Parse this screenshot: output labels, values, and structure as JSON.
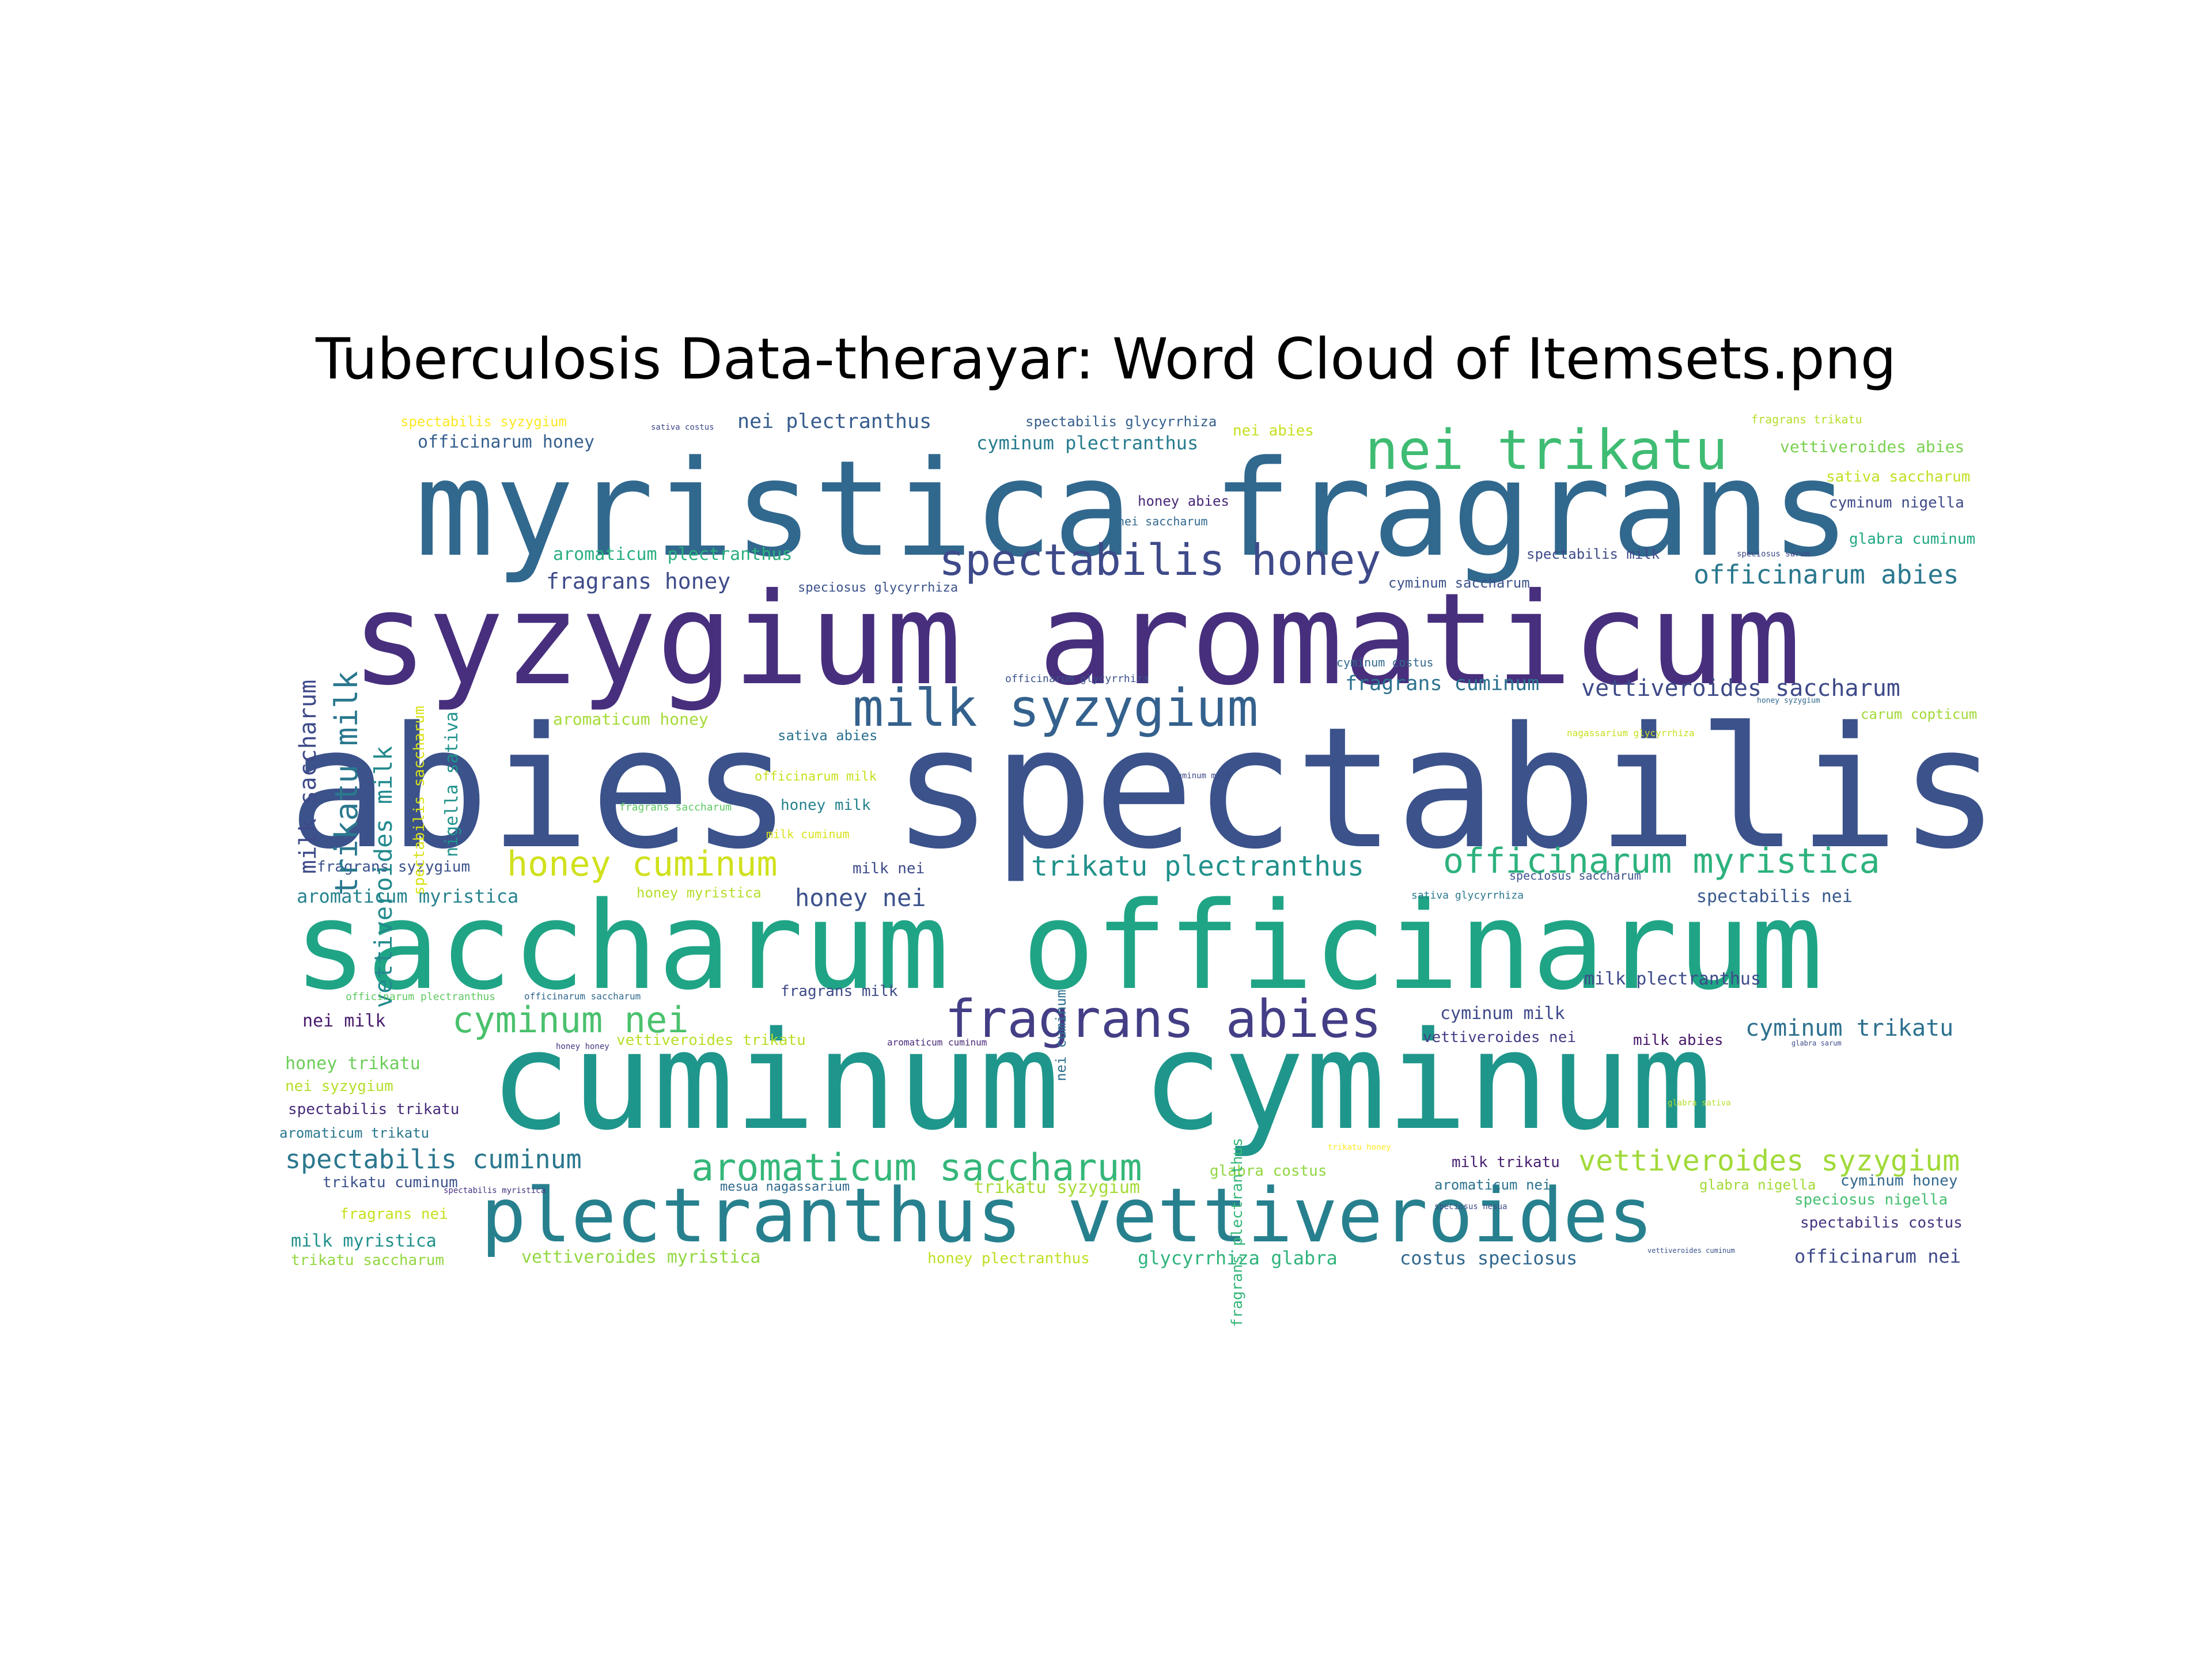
{
  "title": "Tuberculosis Data-therayar: Word Cloud of Itemsets.png",
  "palette": {
    "dark_purple": "#482878",
    "indigo": "#3e4a89",
    "blue": "#31688e",
    "teal": "#26828e",
    "green_teal": "#1f9e89",
    "green": "#35b779",
    "lime": "#6ece58",
    "yellow": "#b5de2b"
  },
  "words": [
    {
      "text": "abies spectabilis",
      "color": "#3b528b"
    },
    {
      "text": "syzygium aromaticum",
      "color": "#472f7d"
    },
    {
      "text": "myristica fragrans",
      "color": "#31688e"
    },
    {
      "text": "saccharum officinarum",
      "color": "#20a486"
    },
    {
      "text": "cuminum cyminum",
      "color": "#1f968b"
    },
    {
      "text": "plectranthus vettiveroides",
      "color": "#27808e"
    },
    {
      "text": "nei trikatu",
      "color": "#3fbc73"
    },
    {
      "text": "spectabilis honey",
      "color": "#3e4a89"
    },
    {
      "text": "milk syzygium",
      "color": "#34618d"
    },
    {
      "text": "fragrans abies",
      "color": "#433e85"
    },
    {
      "text": "honey cuminum",
      "color": "#d0e11c"
    },
    {
      "text": "officinarum myristica",
      "color": "#2db27d"
    },
    {
      "text": "trikatu plectranthus",
      "color": "#21918c"
    },
    {
      "text": "cyminum nei",
      "color": "#4ac16d"
    },
    {
      "text": "aromaticum saccharum",
      "color": "#35b779"
    },
    {
      "text": "vettiveroides syzygium",
      "color": "#a0da39"
    },
    {
      "text": "officinarum abies",
      "color": "#2a788e"
    },
    {
      "text": "fragrans honey",
      "color": "#3e4c8a"
    },
    {
      "text": "vettiveroides saccharum",
      "color": "#3e4a89"
    },
    {
      "text": "fragrans cuminum",
      "color": "#2c728e"
    },
    {
      "text": "spectabilis cuminum",
      "color": "#2a778e"
    },
    {
      "text": "cyminum trikatu",
      "color": "#2d708e"
    },
    {
      "text": "honey nei",
      "color": "#3b528b"
    },
    {
      "text": "nei plectranthus",
      "color": "#365c8d"
    },
    {
      "text": "officinarum honey",
      "color": "#355f8d"
    },
    {
      "text": "cyminum plectranthus",
      "color": "#287c8e"
    },
    {
      "text": "aromaticum plectranthus",
      "color": "#29af7f"
    },
    {
      "text": "aromaticum myristica",
      "color": "#25838e"
    },
    {
      "text": "fragrans syzygium",
      "color": "#3b528b"
    },
    {
      "text": "aromaticum honey",
      "color": "#a5db36"
    },
    {
      "text": "honey trikatu",
      "color": "#6ccd5a"
    },
    {
      "text": "nei milk",
      "color": "#481a6c"
    },
    {
      "text": "nei syzygium",
      "color": "#b5de2b"
    },
    {
      "text": "spectabilis trikatu",
      "color": "#472c7a"
    },
    {
      "text": "aromaticum trikatu",
      "color": "#2a788e"
    },
    {
      "text": "trikatu cuminum",
      "color": "#3b528b"
    },
    {
      "text": "fragrans nei",
      "color": "#c8e020"
    },
    {
      "text": "milk myristica",
      "color": "#21918c"
    },
    {
      "text": "trikatu saccharum",
      "color": "#93d741"
    },
    {
      "text": "vettiveroides myristica",
      "color": "#93d741"
    },
    {
      "text": "honey plectranthus",
      "color": "#bddf26"
    },
    {
      "text": "glycyrrhiza glabra",
      "color": "#2fb47c"
    },
    {
      "text": "costus speciosus",
      "color": "#31688e"
    },
    {
      "text": "officinarum nei",
      "color": "#3e4a89"
    },
    {
      "text": "spectabilis costus",
      "color": "#46337f"
    },
    {
      "text": "speciosus nigella",
      "color": "#44bf70"
    },
    {
      "text": "cyminum honey",
      "color": "#31688e"
    },
    {
      "text": "glabra nigella",
      "color": "#a2da37"
    },
    {
      "text": "aromaticum nei",
      "color": "#2c728e"
    },
    {
      "text": "milk trikatu",
      "color": "#481f70"
    },
    {
      "text": "glabra costus",
      "color": "#90d743"
    },
    {
      "text": "trikatu syzygium",
      "color": "#a5db36"
    },
    {
      "text": "mesua nagassarium",
      "color": "#31688e"
    },
    {
      "text": "spectabilis nei",
      "color": "#38598c"
    },
    {
      "text": "milk plectranthus",
      "color": "#3e4a89"
    },
    {
      "text": "cyminum milk",
      "color": "#3e4a89"
    },
    {
      "text": "vettiveroides nei",
      "color": "#433e85"
    },
    {
      "text": "milk abies",
      "color": "#48186a"
    },
    {
      "text": "vettiveroides trikatu",
      "color": "#b8de29"
    },
    {
      "text": "fragrans milk",
      "color": "#3e4a89"
    },
    {
      "text": "honey myristica",
      "color": "#b5de2b"
    },
    {
      "text": "milk nei",
      "color": "#3e4a89"
    },
    {
      "text": "honey milk",
      "color": "#26828e"
    },
    {
      "text": "sativa abies",
      "color": "#2c728e"
    },
    {
      "text": "carum copticum",
      "color": "#a2da37"
    },
    {
      "text": "spectabilis milk",
      "color": "#3e4a89"
    },
    {
      "text": "cyminum saccharum",
      "color": "#3b528b"
    },
    {
      "text": "glabra cuminum",
      "color": "#22a884"
    },
    {
      "text": "cyminum nigella",
      "color": "#3e4a89"
    },
    {
      "text": "sativa saccharum",
      "color": "#c2df23"
    },
    {
      "text": "vettiveroides abies",
      "color": "#7ad151"
    },
    {
      "text": "spectabilis syzygium",
      "color": "#fde725"
    },
    {
      "text": "spectabilis glycyrrhiza",
      "color": "#355f8d"
    },
    {
      "text": "nei abies",
      "color": "#c8e020"
    },
    {
      "text": "fragrans trikatu",
      "color": "#b5de2b"
    },
    {
      "text": "honey abies",
      "color": "#482878"
    },
    {
      "text": "nei saccharum",
      "color": "#31688e"
    },
    {
      "text": "speciosus glycyrrhiza",
      "color": "#3b528b"
    },
    {
      "text": "cyminum costus",
      "color": "#31688e"
    },
    {
      "text": "speciosus saccharum",
      "color": "#3b528b"
    },
    {
      "text": "sativa glycyrrhiza",
      "color": "#2a788e"
    },
    {
      "text": "officinarum glycyrrhiza",
      "color": "#3b528b"
    },
    {
      "text": "nagassarium glycyrrhiza",
      "color": "#c8e020"
    },
    {
      "text": "milk saccharum",
      "color": "#3e4a89"
    },
    {
      "text": "trikatu milk",
      "color": "#2a788e"
    },
    {
      "text": "vettiveroides milk",
      "color": "#238a8d"
    },
    {
      "text": "spectabilis saccharum",
      "color": "#d8e219"
    },
    {
      "text": "nigella sativa",
      "color": "#20928c"
    },
    {
      "text": "nei cuminum",
      "color": "#2e6f8e"
    },
    {
      "text": "fragrans plectranthus",
      "color": "#35b779"
    },
    {
      "text": "officinarum milk",
      "color": "#c8e020"
    },
    {
      "text": "milk cuminum",
      "color": "#d8e219"
    },
    {
      "text": "fragrans saccharum",
      "color": "#5ec962"
    },
    {
      "text": "officinarum plectranthus",
      "color": "#5ec962"
    },
    {
      "text": "officinarum saccharum",
      "color": "#31688e"
    },
    {
      "text": "honey honey",
      "color": "#46337f"
    },
    {
      "text": "aromaticum cuminum",
      "color": "#482878"
    },
    {
      "text": "spectabilis myristica",
      "color": "#46337f"
    },
    {
      "text": "cuminum milk",
      "color": "#3e4a89"
    },
    {
      "text": "sativa costus",
      "color": "#3e4a89"
    },
    {
      "text": "glabra sativa",
      "color": "#b5de2b"
    },
    {
      "text": "speciosus nesua",
      "color": "#3e4a89"
    },
    {
      "text": "vettiveroides cuminum",
      "color": "#3b528b"
    },
    {
      "text": "trikatu honey",
      "color": "#fde725"
    },
    {
      "text": "speciosus sarum",
      "color": "#3e4a89"
    },
    {
      "text": "glabra sarum",
      "color": "#3e4a89"
    },
    {
      "text": "honey syzygium",
      "color": "#31688e"
    }
  ]
}
